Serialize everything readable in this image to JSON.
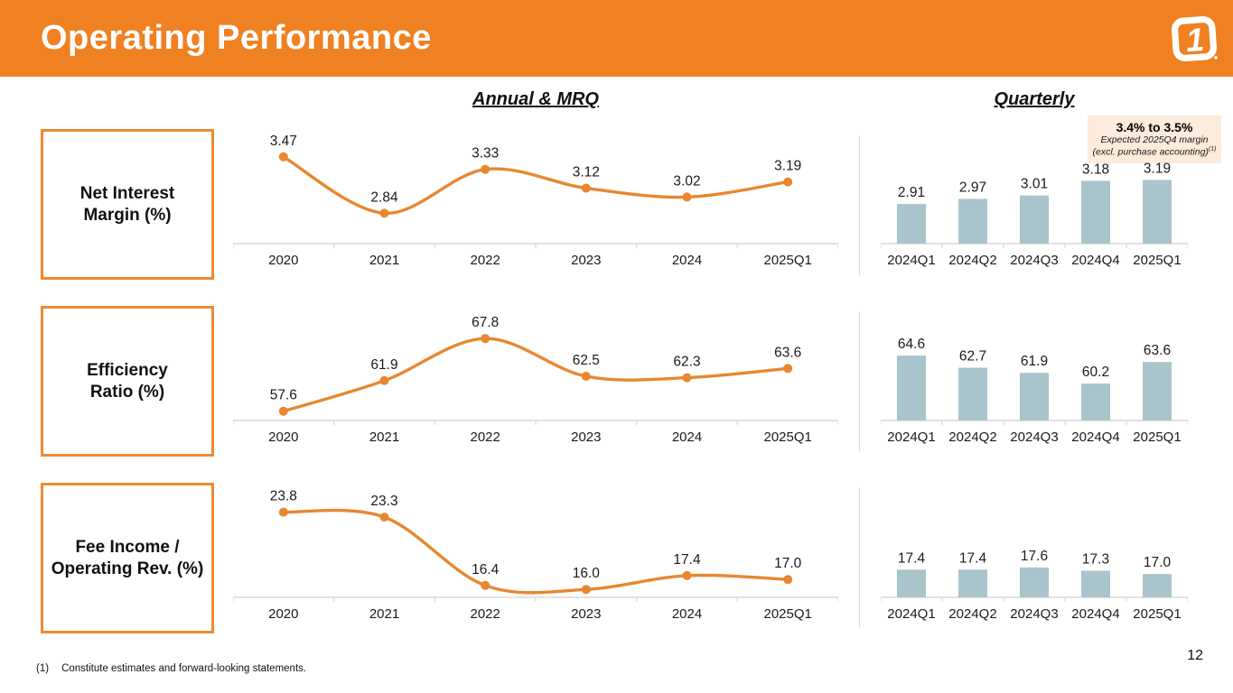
{
  "slide": {
    "title": "Operating Performance",
    "logo_glyph": "1",
    "left_section_title": "Annual & MRQ",
    "right_section_title": "Quarterly",
    "footnote_marker": "(1)",
    "footnote_text": "Constitute estimates and forward-looking statements.",
    "page_number": "12"
  },
  "annotation": {
    "headline": "3.4% to 3.5%",
    "sub_line1": "Expected 2025Q4 margin",
    "sub_line2": "(excl. purchase accounting)",
    "sub_superscript": "(1)"
  },
  "colors": {
    "header_orange": "#F08122",
    "box_border_orange": "#ED8A33",
    "line_orange": "#E8872F",
    "bar_blue": "#A9C4CB",
    "axis_gray": "#D9D9D9",
    "annotation_bg": "#FDEBDB",
    "label_text": "#1a1a1a"
  },
  "rows": [
    {
      "label": "Net Interest\nMargin (%)"
    },
    {
      "label": "Efficiency\nRatio (%)"
    },
    {
      "label": "Fee Income /\nOperating Rev. (%)"
    }
  ],
  "chart_data": [
    {
      "id": "net-interest-margin-annual",
      "type": "line",
      "title": "Net Interest Margin (%) — Annual & MRQ",
      "categories": [
        "2020",
        "2021",
        "2022",
        "2023",
        "2024",
        "2025Q1"
      ],
      "values": [
        3.47,
        2.84,
        3.33,
        3.12,
        3.02,
        3.19
      ],
      "labels": [
        "3.47",
        "2.84",
        "3.33",
        "3.12",
        "3.02",
        "3.19"
      ],
      "ylim": [
        2.5,
        3.75
      ],
      "grid": false,
      "legend": "none"
    },
    {
      "id": "net-interest-margin-quarterly",
      "type": "bar",
      "title": "Net Interest Margin (%) — Quarterly",
      "categories": [
        "2024Q1",
        "2024Q2",
        "2024Q3",
        "2024Q4",
        "2025Q1"
      ],
      "values": [
        2.91,
        2.97,
        3.01,
        3.18,
        3.19
      ],
      "labels": [
        "2.91",
        "2.97",
        "3.01",
        "3.18",
        "3.19"
      ],
      "ylim": [
        2.45,
        3.75
      ],
      "grid": false,
      "legend": "none"
    },
    {
      "id": "efficiency-ratio-annual",
      "type": "line",
      "title": "Efficiency Ratio (%) — Annual & MRQ",
      "categories": [
        "2020",
        "2021",
        "2022",
        "2023",
        "2024",
        "2025Q1"
      ],
      "values": [
        57.6,
        61.9,
        67.8,
        62.5,
        62.3,
        63.6
      ],
      "labels": [
        "57.6",
        "61.9",
        "67.8",
        "62.5",
        "62.3",
        "63.6"
      ],
      "ylim": [
        56.3,
        72.0
      ],
      "grid": false,
      "legend": "none"
    },
    {
      "id": "efficiency-ratio-quarterly",
      "type": "bar",
      "title": "Efficiency Ratio (%) — Quarterly",
      "categories": [
        "2024Q1",
        "2024Q2",
        "2024Q3",
        "2024Q4",
        "2025Q1"
      ],
      "values": [
        64.6,
        62.7,
        61.9,
        60.2,
        63.6
      ],
      "labels": [
        "64.6",
        "62.7",
        "61.9",
        "60.2",
        "63.6"
      ],
      "ylim": [
        54.4,
        72.0
      ],
      "grid": false,
      "legend": "none"
    },
    {
      "id": "fee-income-annual",
      "type": "line",
      "title": "Fee Income / Operating Rev. (%) — Annual & MRQ",
      "categories": [
        "2020",
        "2021",
        "2022",
        "2023",
        "2024",
        "2025Q1"
      ],
      "values": [
        23.8,
        23.3,
        16.4,
        16.0,
        17.4,
        17.0
      ],
      "labels": [
        "23.8",
        "23.3",
        "16.4",
        "16.0",
        "17.4",
        "17.0"
      ],
      "ylim": [
        15.2,
        26.5
      ],
      "grid": false,
      "legend": "none"
    },
    {
      "id": "fee-income-quarterly",
      "type": "bar",
      "title": "Fee Income / Operating Rev. (%) — Quarterly",
      "categories": [
        "2024Q1",
        "2024Q2",
        "2024Q3",
        "2024Q4",
        "2025Q1"
      ],
      "values": [
        17.4,
        17.4,
        17.6,
        17.3,
        17.0
      ],
      "labels": [
        "17.4",
        "17.4",
        "17.6",
        "17.3",
        "17.0"
      ],
      "ylim": [
        14.9,
        25.0
      ],
      "grid": false,
      "legend": "none"
    }
  ]
}
